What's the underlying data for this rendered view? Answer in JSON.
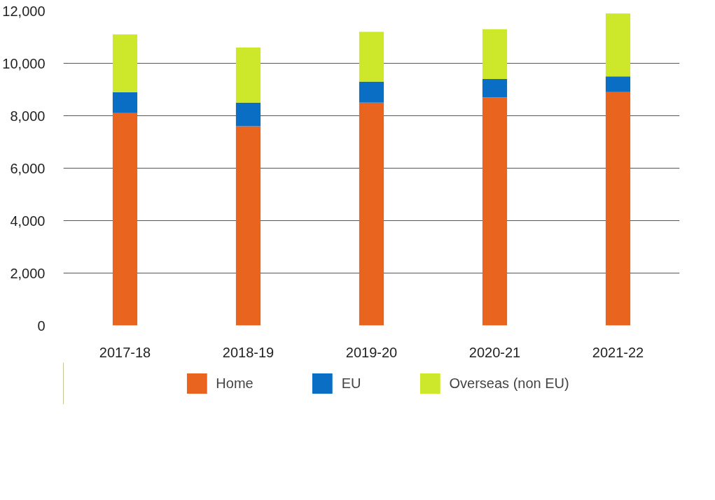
{
  "chart_data": {
    "type": "bar",
    "stacked": true,
    "categories": [
      "2017-18",
      "2018-19",
      "2019-20",
      "2020-21",
      "2021-22"
    ],
    "series": [
      {
        "name": "Home",
        "color": "#e8641f",
        "values": [
          8100,
          7600,
          8500,
          8700,
          8900
        ]
      },
      {
        "name": "EU",
        "color": "#0a6fc4",
        "values": [
          800,
          900,
          800,
          700,
          600
        ]
      },
      {
        "name": "Overseas (non EU)",
        "color": "#cde82a",
        "values": [
          2200,
          2100,
          1900,
          1900,
          2400
        ]
      }
    ],
    "ylim": [
      0,
      12000
    ],
    "yticks": [
      0,
      {
        "value": 2000,
        "label": "2,000"
      },
      {
        "value": 4000,
        "label": "4,000"
      },
      {
        "value": 6000,
        "label": "6,000"
      },
      {
        "value": 8000,
        "label": "8,000"
      },
      {
        "value": 10000,
        "label": "10,000"
      },
      {
        "value": 12000,
        "label": "12,000"
      }
    ],
    "grid": "y",
    "legend": "bottom"
  }
}
